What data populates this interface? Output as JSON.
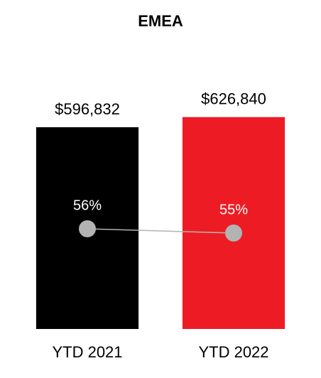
{
  "chart_data": {
    "type": "bar",
    "title": "EMEA",
    "categories": [
      "YTD 2021",
      "YTD 2022"
    ],
    "series": [
      {
        "type": "bar",
        "colors": [
          "#000000",
          "#ed1c24"
        ],
        "values": [
          596832,
          626840
        ],
        "value_labels": [
          "$596,832",
          "$626,840"
        ]
      },
      {
        "type": "line",
        "axis": "y2",
        "color": "#b3b3b3",
        "values": [
          56,
          55
        ],
        "value_labels": [
          "56%",
          "55%"
        ]
      }
    ],
    "ylim": [
      0,
      700000
    ],
    "y2lim": [
      32.5,
      88
    ]
  }
}
